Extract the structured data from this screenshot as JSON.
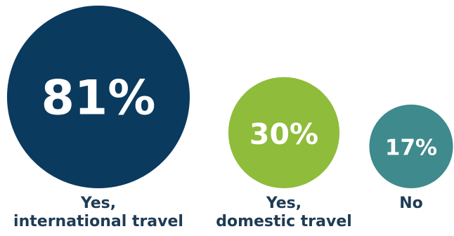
{
  "chart_data": {
    "type": "bubble",
    "categories": [
      [
        "Yes,",
        "international travel"
      ],
      [
        "Yes,",
        "domestic travel"
      ],
      [
        "No"
      ]
    ],
    "values": [
      81,
      30,
      17
    ],
    "value_labels": [
      "81%",
      "30%",
      "17%"
    ],
    "colors": [
      "#0b3a5f",
      "#8fbc3b",
      "#3f8a8c"
    ],
    "grid": false,
    "legend": "none"
  }
}
